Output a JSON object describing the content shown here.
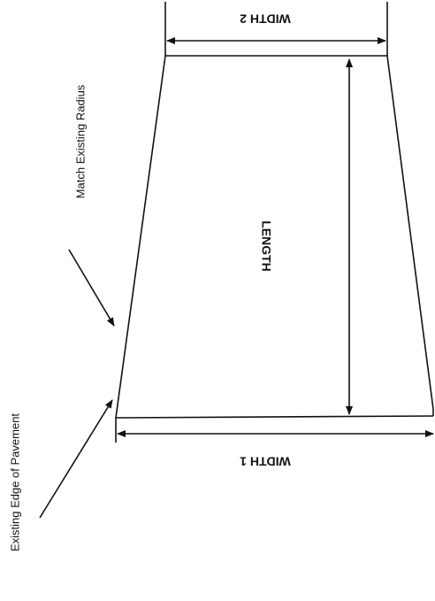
{
  "labels": {
    "width_top": "WIDTH 2",
    "width_bottom": "WIDTH 1",
    "length": "LENGTH",
    "radius_note": "Match Existing Radius",
    "edge_note": "Existing Edge of Pavement"
  }
}
